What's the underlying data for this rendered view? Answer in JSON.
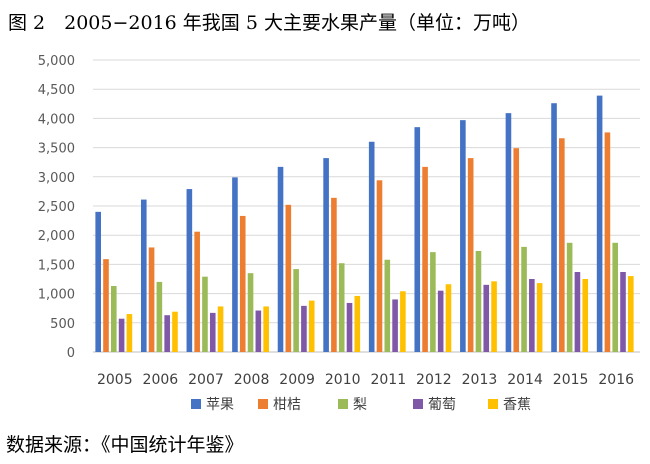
{
  "figure_title": "图 2　2005−2016 年我国 5 大主要水果产量（单位：万吨）",
  "source_note": "数据来源：《中国统计年鉴》",
  "colors": {
    "苹果": "#4472C4",
    "柑桔": "#ED7D31",
    "梨": "#9BBB59",
    "葡萄": "#7F58A8",
    "香蕉": "#FFC000",
    "grid": "#D9D9D9"
  },
  "chart_data": {
    "type": "bar",
    "title": "",
    "xlabel": "",
    "ylabel": "",
    "ylim": [
      0,
      5000
    ],
    "yticks": [
      0,
      500,
      1000,
      1500,
      2000,
      2500,
      3000,
      3500,
      4000,
      4500,
      5000
    ],
    "ytick_labels": [
      "0",
      "500",
      "1,000",
      "1,500",
      "2,000",
      "2,500",
      "3,000",
      "3,500",
      "4,000",
      "4,500",
      "5,000"
    ],
    "grid": true,
    "legend_position": "bottom",
    "categories": [
      "2005",
      "2006",
      "2007",
      "2008",
      "2009",
      "2010",
      "2011",
      "2012",
      "2013",
      "2014",
      "2015",
      "2016"
    ],
    "series": [
      {
        "name": "苹果",
        "values": [
          2400,
          2610,
          2790,
          2990,
          3170,
          3320,
          3600,
          3850,
          3970,
          4090,
          4260,
          4390
        ]
      },
      {
        "name": "柑桔",
        "values": [
          1590,
          1790,
          2060,
          2330,
          2520,
          2640,
          2940,
          3170,
          3320,
          3490,
          3660,
          3760
        ]
      },
      {
        "name": "梨",
        "values": [
          1130,
          1200,
          1290,
          1350,
          1420,
          1520,
          1580,
          1710,
          1730,
          1800,
          1870,
          1870
        ]
      },
      {
        "name": "葡萄",
        "values": [
          570,
          630,
          670,
          710,
          790,
          840,
          900,
          1050,
          1150,
          1250,
          1370,
          1370
        ]
      },
      {
        "name": "香蕉",
        "values": [
          650,
          690,
          780,
          780,
          880,
          960,
          1040,
          1160,
          1210,
          1180,
          1250,
          1300
        ]
      }
    ]
  }
}
